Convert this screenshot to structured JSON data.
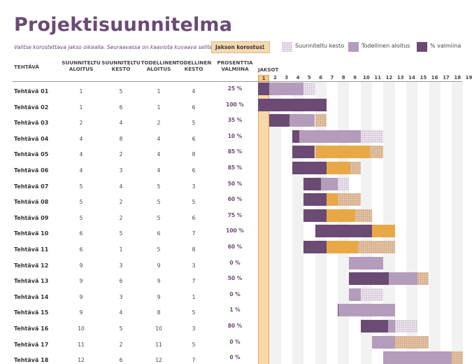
{
  "title": "Projektisuunnitelma",
  "subtitle": "Valitse korostettava jakso oikealla.  Seuraavassa on kaaviota kuvaava selite.",
  "highlight": {
    "label": "Jakson korostus:",
    "value": "1"
  },
  "legend": [
    {
      "label": "Suunniteltu kesto",
      "kind": "plan"
    },
    {
      "label": "Todellinen aloitus",
      "kind": "actual"
    },
    {
      "label": "% valmiina",
      "kind": "complete"
    }
  ],
  "columns": {
    "task": "TEHTÄVÄ",
    "plan_start": "SUUNNITELTU\nALOITUS",
    "plan_duration": "SUUNNITELTU\nKESTO",
    "actual_start": "TODELLINEN\nALOITUS",
    "actual_duration": "TODELLINEN\nKESTO",
    "percent": "PROSENTTIA\nVALMIINA",
    "periods": "JAKSOT"
  },
  "periods": [
    1,
    2,
    3,
    4,
    5,
    6,
    7,
    8,
    9,
    10,
    11,
    12,
    13,
    14,
    15,
    16,
    17,
    18,
    19
  ],
  "highlight_period": 1,
  "colors": {
    "title": "#6b4a73",
    "plan": "#efe9f1",
    "actual": "#b49cbc",
    "complete": "#6b4a73",
    "beyond": "#e8a846",
    "highlight": "#fbd8a8"
  },
  "tasks": [
    {
      "name": "Tehtävä 01",
      "plan_start": 1,
      "plan_duration": 5,
      "actual_start": 1,
      "actual_duration": 4,
      "percent": "25 %"
    },
    {
      "name": "Tehtävä 02",
      "plan_start": 1,
      "plan_duration": 6,
      "actual_start": 1,
      "actual_duration": 6,
      "percent": "100 %"
    },
    {
      "name": "Tehtävä 03",
      "plan_start": 2,
      "plan_duration": 4,
      "actual_start": 2,
      "actual_duration": 5,
      "percent": "35 %"
    },
    {
      "name": "Tehtävä 04",
      "plan_start": 4,
      "plan_duration": 8,
      "actual_start": 4,
      "actual_duration": 6,
      "percent": "10 %"
    },
    {
      "name": "Tehtävä 05",
      "plan_start": 4,
      "plan_duration": 2,
      "actual_start": 4,
      "actual_duration": 8,
      "percent": "85 %"
    },
    {
      "name": "Tehtävä 06",
      "plan_start": 4,
      "plan_duration": 3,
      "actual_start": 4,
      "actual_duration": 6,
      "percent": "85 %"
    },
    {
      "name": "Tehtävä 07",
      "plan_start": 5,
      "plan_duration": 4,
      "actual_start": 5,
      "actual_duration": 3,
      "percent": "50 %"
    },
    {
      "name": "Tehtävä 08",
      "plan_start": 5,
      "plan_duration": 2,
      "actual_start": 5,
      "actual_duration": 5,
      "percent": "60 %"
    },
    {
      "name": "Tehtävä 09",
      "plan_start": 5,
      "plan_duration": 2,
      "actual_start": 5,
      "actual_duration": 6,
      "percent": "75 %"
    },
    {
      "name": "Tehtävä 10",
      "plan_start": 6,
      "plan_duration": 5,
      "actual_start": 6,
      "actual_duration": 7,
      "percent": "100 %"
    },
    {
      "name": "Tehtävä 11",
      "plan_start": 6,
      "plan_duration": 1,
      "actual_start": 5,
      "actual_duration": 8,
      "percent": "60 %"
    },
    {
      "name": "Tehtävä 12",
      "plan_start": 9,
      "plan_duration": 3,
      "actual_start": 9,
      "actual_duration": 3,
      "percent": "0 %"
    },
    {
      "name": "Tehtävä 13",
      "plan_start": 9,
      "plan_duration": 6,
      "actual_start": 9,
      "actual_duration": 7,
      "percent": "50 %"
    },
    {
      "name": "Tehtävä 14",
      "plan_start": 9,
      "plan_duration": 3,
      "actual_start": 9,
      "actual_duration": 1,
      "percent": "0 %"
    },
    {
      "name": "Tehtävä 15",
      "plan_start": 9,
      "plan_duration": 4,
      "actual_start": 8,
      "actual_duration": 5,
      "percent": "1 %"
    },
    {
      "name": "Tehtävä 16",
      "plan_start": 10,
      "plan_duration": 5,
      "actual_start": 10,
      "actual_duration": 3,
      "percent": "80 %"
    },
    {
      "name": "Tehtävä 17",
      "plan_start": 11,
      "plan_duration": 2,
      "actual_start": 11,
      "actual_duration": 5,
      "percent": "0 %"
    },
    {
      "name": "Tehtävä 18",
      "plan_start": 12,
      "plan_duration": 6,
      "actual_start": 12,
      "actual_duration": 7,
      "percent": "0 %"
    }
  ]
}
